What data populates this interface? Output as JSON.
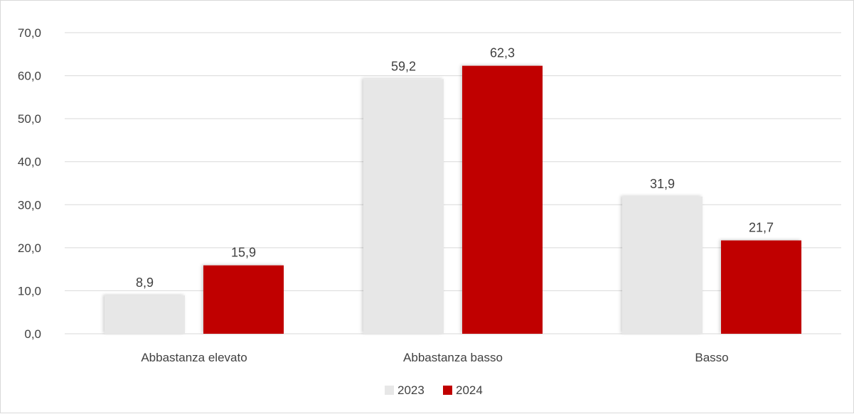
{
  "chart_data": {
    "type": "bar",
    "title": "",
    "xlabel": "",
    "ylabel": "",
    "categories": [
      "Abbastanza elevato",
      "Abbastanza basso",
      "Basso"
    ],
    "series": [
      {
        "name": "2023",
        "values": [
          8.9,
          59.2,
          31.9
        ],
        "labels": [
          "8,9",
          "59,2",
          "31,9"
        ],
        "color": "#e7e7e7"
      },
      {
        "name": "2024",
        "values": [
          15.9,
          62.3,
          21.7
        ],
        "labels": [
          "15,9",
          "62,3",
          "21,7"
        ],
        "color": "#c00000"
      }
    ],
    "ylim": [
      0,
      70
    ],
    "yticks": [
      0,
      10,
      20,
      30,
      40,
      50,
      60,
      70
    ],
    "ytick_labels": [
      "0,0",
      "10,0",
      "20,0",
      "30,0",
      "40,0",
      "50,0",
      "60,0",
      "70,0"
    ],
    "grid": true,
    "legend_position": "bottom",
    "gridline_color": "#d9d9d9"
  }
}
